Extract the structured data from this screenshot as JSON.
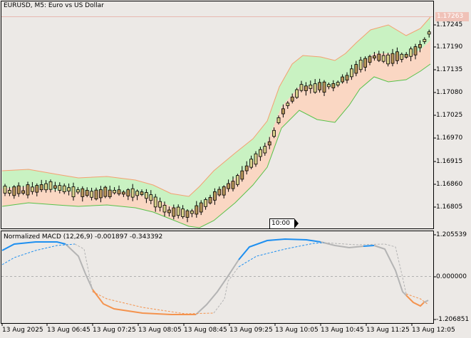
{
  "main": {
    "title": "EURUSD, M5:  Euro vs US Dollar",
    "current_price": "1.17263",
    "price_labels": [
      "1.17245",
      "1.17190",
      "1.17135",
      "1.17080",
      "1.17025",
      "1.16970",
      "1.16915",
      "1.16860",
      "1.16805"
    ],
    "time_marker": "10:00"
  },
  "indicator": {
    "title": "Normalized MACD (12,26,9) -0.001897 -0.343392",
    "levels": [
      "1.205539",
      "0.000000",
      "-1.206851"
    ]
  },
  "time_axis": {
    "labels": [
      "13 Aug 2025",
      "13 Aug 06:45",
      "13 Aug 07:25",
      "13 Aug 08:05",
      "13 Aug 08:45",
      "13 Aug 09:25",
      "13 Aug 10:05",
      "13 Aug 10:45",
      "13 Aug 11:25",
      "13 Aug 12:05"
    ]
  },
  "colors": {
    "background": "#ece9e6",
    "bull_candle": "#d7d08a",
    "bear_candle": "#b6955a",
    "upper_band_fill": "#c9f2c2",
    "lower_band_fill": "#fad7c3",
    "upper_band_line": "#58c24a",
    "lower_band_line": "#f4a070",
    "macd_up": "#1e8ff0",
    "macd_down": "#f4934e",
    "macd_neutral": "#b4b4b4"
  }
}
